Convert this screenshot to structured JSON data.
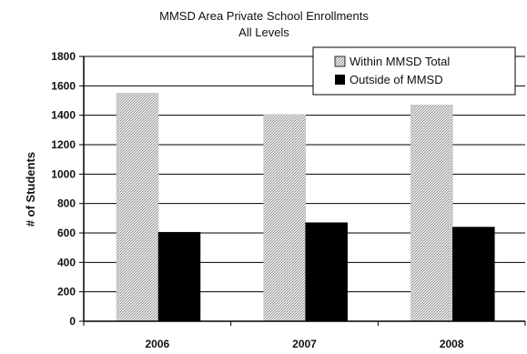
{
  "chart_data": {
    "type": "bar",
    "title": "MMSD Area Private School Enrollments",
    "subtitle": "All Levels",
    "xlabel": "",
    "ylabel": "# of Students",
    "categories": [
      "2006",
      "2007",
      "2008"
    ],
    "series": [
      {
        "name": "Within MMSD Total",
        "values": [
          1550,
          1405,
          1470
        ],
        "color": "#cfcfcf",
        "pattern": "dotted-gray"
      },
      {
        "name": "Outside of MMSD",
        "values": [
          605,
          670,
          640
        ],
        "color": "#000000",
        "pattern": "solid"
      }
    ],
    "ylim": [
      0,
      1800
    ],
    "yticks": [
      0,
      200,
      400,
      600,
      800,
      1000,
      1200,
      1400,
      1600,
      1800
    ],
    "grid": true,
    "legend_position": "top-right"
  }
}
